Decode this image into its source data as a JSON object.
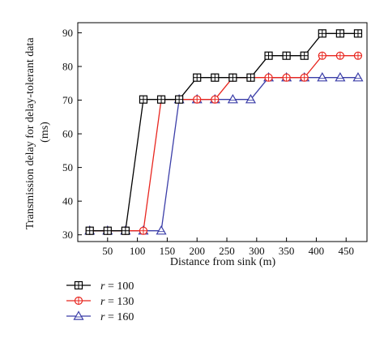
{
  "chart_data": {
    "type": "line",
    "x": [
      20,
      50,
      80,
      110,
      140,
      170,
      200,
      230,
      260,
      290,
      320,
      350,
      380,
      410,
      440,
      470
    ],
    "xlabel": "Distance from sink (m)",
    "ylabel_lines": [
      "Transmission delay for delay-tolerant data",
      "(ms)"
    ],
    "xticks": [
      50,
      100,
      150,
      200,
      250,
      300,
      350,
      400,
      450
    ],
    "yticks": [
      30,
      40,
      50,
      60,
      70,
      80,
      90
    ],
    "xlim": [
      0,
      485
    ],
    "ylim": [
      28,
      93
    ],
    "grid": false,
    "legend_position": "below-left",
    "series": [
      {
        "name_var": "r",
        "name_val": "= 100",
        "marker": "square-cross",
        "color": "#000000",
        "values": [
          31.2,
          31.2,
          31.2,
          70.2,
          70.2,
          70.2,
          76.7,
          76.7,
          76.7,
          76.7,
          83.2,
          83.2,
          83.2,
          89.8,
          89.8,
          89.8
        ]
      },
      {
        "name_var": "r",
        "name_val": "= 130",
        "marker": "circle-plus",
        "color": "#e8261f",
        "values": [
          31.2,
          31.2,
          31.2,
          31.2,
          70.2,
          70.2,
          70.2,
          70.2,
          76.7,
          76.7,
          76.7,
          76.7,
          76.7,
          83.2,
          83.2,
          83.2
        ]
      },
      {
        "name_var": "r",
        "name_val": "= 160",
        "marker": "triangle",
        "color": "#3b3ea8",
        "values": [
          31.2,
          31.2,
          31.2,
          31.2,
          31.2,
          70.2,
          70.2,
          70.2,
          70.2,
          70.2,
          76.7,
          76.7,
          76.7,
          76.7,
          76.7,
          76.7
        ]
      }
    ]
  }
}
